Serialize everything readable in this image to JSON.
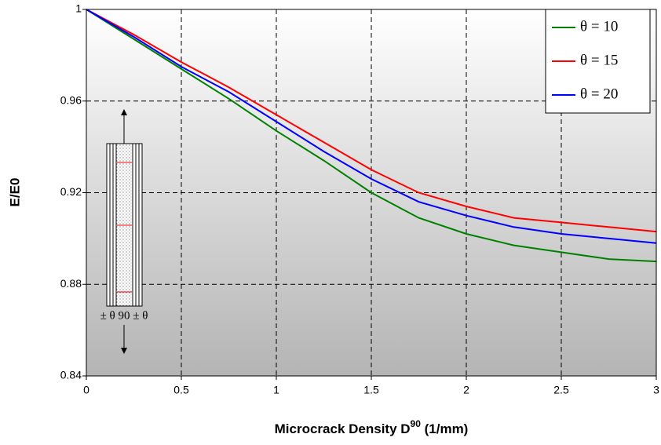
{
  "chart_data": {
    "type": "line",
    "xlabel": [
      "Microcrack Density D",
      "90",
      " (1/mm)"
    ],
    "ylabel": "E/E0",
    "x": [
      0,
      0.25,
      0.5,
      0.75,
      1,
      1.25,
      1.5,
      1.75,
      2,
      2.25,
      2.5,
      2.75,
      3
    ],
    "series": [
      {
        "name": "θ = 10",
        "color": "#008000",
        "values": [
          1,
          0.987,
          0.974,
          0.961,
          0.947,
          0.934,
          0.92,
          0.909,
          0.902,
          0.897,
          0.894,
          0.891,
          0.89
        ]
      },
      {
        "name": "θ = 15",
        "color": "#ff0000",
        "values": [
          1,
          0.989,
          0.977,
          0.966,
          0.954,
          0.942,
          0.93,
          0.92,
          0.914,
          0.909,
          0.907,
          0.905,
          0.903
        ]
      },
      {
        "name": "θ = 20",
        "color": "#0000ff",
        "values": [
          1,
          0.988,
          0.975,
          0.964,
          0.951,
          0.938,
          0.926,
          0.916,
          0.91,
          0.905,
          0.902,
          0.9,
          0.898
        ]
      }
    ],
    "xlim": [
      0,
      3
    ],
    "xticks": [
      0,
      0.5,
      1,
      1.5,
      2,
      2.5,
      3
    ],
    "ylim": [
      0.84,
      1
    ],
    "yticks": [
      0.84,
      0.88,
      0.92,
      0.96,
      1
    ],
    "grid": true,
    "legend": "top-right",
    "inset_label": "± θ 90 ± θ"
  }
}
